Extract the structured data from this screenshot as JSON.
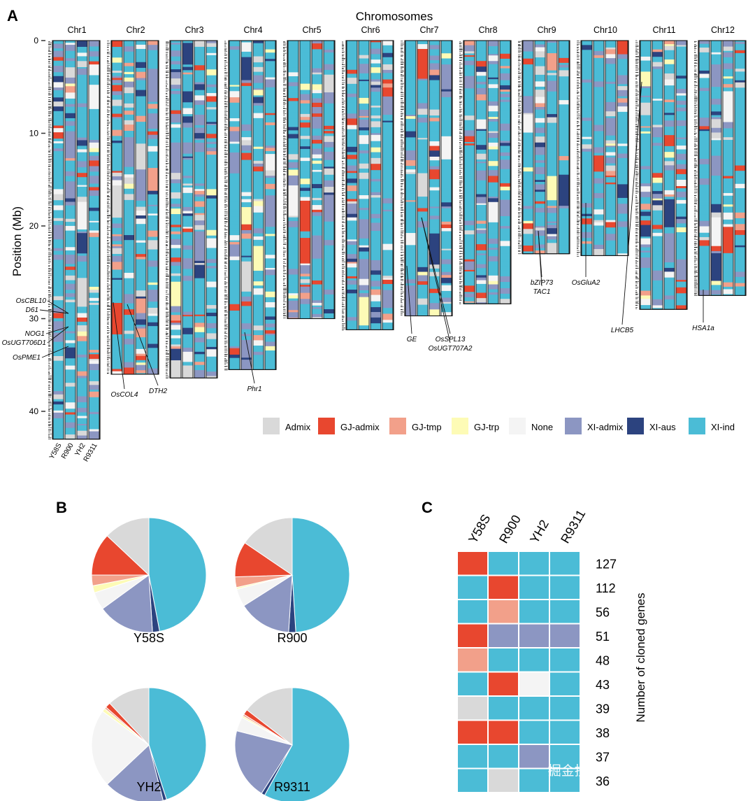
{
  "watermark": "掘金技术社区@生物信息与育种",
  "colors": {
    "Admix": "#d9d9d9",
    "GJ-admix": "#e8472f",
    "GJ-tmp": "#f2a08a",
    "GJ-trp": "#fdfbb6",
    "None": "#f4f4f4",
    "XI-admix": "#8c96c2",
    "XI-aus": "#2c437f",
    "XI-ind": "#4bbcd6"
  },
  "chart_data": [
    {
      "panel": "A",
      "type": "heatmap",
      "title": "Chromosomes",
      "ylabel": "Position (Mb)",
      "ylim": [
        0,
        43
      ],
      "yticks": [
        0,
        10,
        20,
        30,
        40
      ],
      "chromosomes": [
        {
          "name": "Chr1",
          "length": 43
        },
        {
          "name": "Chr2",
          "length": 36
        },
        {
          "name": "Chr3",
          "length": 36.4
        },
        {
          "name": "Chr4",
          "length": 35.5
        },
        {
          "name": "Chr5",
          "length": 30
        },
        {
          "name": "Chr6",
          "length": 31.2
        },
        {
          "name": "Chr7",
          "length": 29.7
        },
        {
          "name": "Chr8",
          "length": 28.4
        },
        {
          "name": "Chr9",
          "length": 23.0
        },
        {
          "name": "Chr10",
          "length": 23.2
        },
        {
          "name": "Chr11",
          "length": 29.0
        },
        {
          "name": "Chr12",
          "length": 27.5
        }
      ],
      "accessions": [
        "Y58S",
        "R900",
        "YH2",
        "R9311"
      ],
      "legend": [
        "Admix",
        "GJ-admix",
        "GJ-tmp",
        "GJ-trp",
        "None",
        "XI-admix",
        "XI-aus",
        "XI-ind"
      ],
      "gene_annotations": [
        {
          "label": "OsCBL10",
          "chr": "Chr1",
          "pos_mb": 28.6
        },
        {
          "label": "D61",
          "chr": "Chr1",
          "pos_mb": 28.6
        },
        {
          "label": "NOG1",
          "chr": "Chr1",
          "pos_mb": 30.8
        },
        {
          "label": "OsUGT706D1",
          "chr": "Chr1",
          "pos_mb": 30.8
        },
        {
          "label": "OsPME1",
          "chr": "Chr1",
          "pos_mb": 33.0
        },
        {
          "label": "OsCOL4",
          "chr": "Chr2",
          "pos_mb": 28.0
        },
        {
          "label": "DTH2",
          "chr": "Chr2",
          "pos_mb": 28.5
        },
        {
          "label": "Phr1",
          "chr": "Chr4",
          "pos_mb": 31.5
        },
        {
          "label": "GE",
          "chr": "Chr7",
          "pos_mb": 24.5
        },
        {
          "label": "OsSPL13",
          "chr": "Chr7",
          "pos_mb": 19.0
        },
        {
          "label": "OsUGT707A2",
          "chr": "Chr7",
          "pos_mb": 19.0
        },
        {
          "label": "bZIP73",
          "chr": "Chr9",
          "pos_mb": 20.5
        },
        {
          "label": "TAC1",
          "chr": "Chr9",
          "pos_mb": 20.5
        },
        {
          "label": "OsGluA2",
          "chr": "Chr10",
          "pos_mb": 15.5
        },
        {
          "label": "LHCB5",
          "chr": "Chr11",
          "pos_mb": 4.5
        },
        {
          "label": "HSA1a",
          "chr": "Chr12",
          "pos_mb": 27.0
        }
      ]
    },
    {
      "panel": "B",
      "type": "pie",
      "categories": [
        "XI-ind",
        "XI-aus",
        "XI-admix",
        "None",
        "GJ-trp",
        "GJ-tmp",
        "GJ-admix",
        "Admix"
      ],
      "series": [
        {
          "name": "Y58S",
          "values": [
            47,
            2,
            16,
            5,
            2,
            3,
            12,
            13
          ]
        },
        {
          "name": "R900",
          "values": [
            49,
            2,
            15,
            5,
            0.5,
            3,
            10,
            15.5
          ]
        },
        {
          "name": "YH2",
          "values": [
            45,
            1,
            17,
            22,
            1,
            0.5,
            1.5,
            12
          ]
        },
        {
          "name": "R9311",
          "values": [
            58,
            1,
            20,
            4,
            0.5,
            0.5,
            1.5,
            14.5
          ]
        }
      ]
    },
    {
      "panel": "C",
      "type": "table",
      "columns": [
        "Y58S",
        "R900",
        "YH2",
        "R9311"
      ],
      "ylabel": "Number of cloned genes",
      "rows": [
        {
          "count": "127",
          "cells": [
            "GJ-admix",
            "XI-ind",
            "XI-ind",
            "XI-ind"
          ]
        },
        {
          "count": "112",
          "cells": [
            "XI-ind",
            "GJ-admix",
            "XI-ind",
            "XI-ind"
          ]
        },
        {
          "count": "56",
          "cells": [
            "XI-ind",
            "GJ-tmp",
            "XI-ind",
            "XI-ind"
          ]
        },
        {
          "count": "51",
          "cells": [
            "GJ-admix",
            "XI-admix",
            "XI-admix",
            "XI-admix"
          ]
        },
        {
          "count": "48",
          "cells": [
            "GJ-tmp",
            "XI-ind",
            "XI-ind",
            "XI-ind"
          ]
        },
        {
          "count": "43",
          "cells": [
            "XI-ind",
            "GJ-admix",
            "None",
            "XI-ind"
          ]
        },
        {
          "count": "39",
          "cells": [
            "Admix",
            "XI-ind",
            "XI-ind",
            "XI-ind"
          ]
        },
        {
          "count": "38",
          "cells": [
            "GJ-admix",
            "GJ-admix",
            "XI-ind",
            "XI-ind"
          ]
        },
        {
          "count": "37",
          "cells": [
            "XI-ind",
            "XI-ind",
            "XI-admix",
            "XI-ind"
          ]
        },
        {
          "count": "36",
          "cells": [
            "XI-ind",
            "Admix",
            "XI-ind",
            "XI-ind"
          ]
        }
      ]
    }
  ]
}
